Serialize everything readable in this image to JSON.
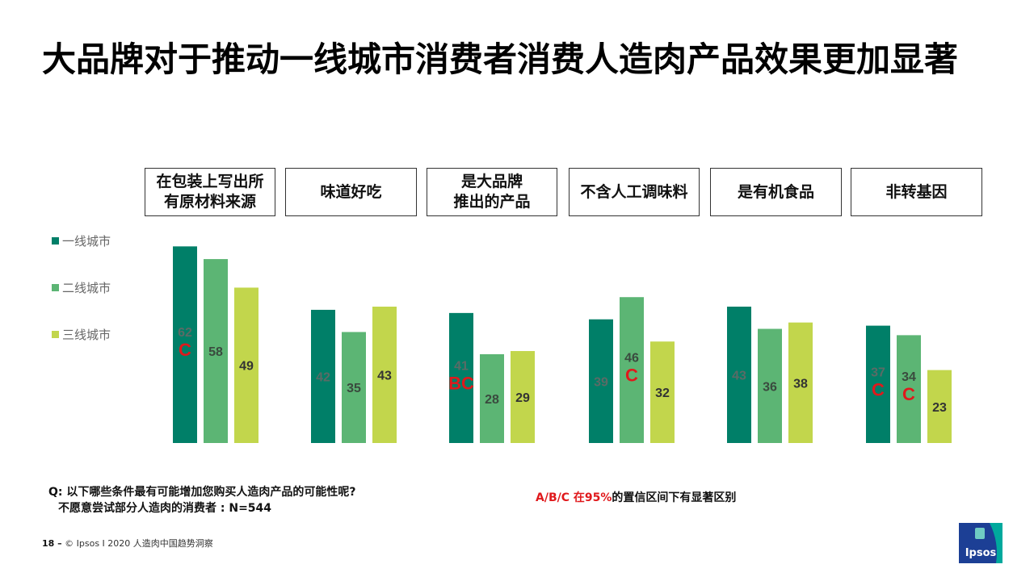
{
  "title": "大品牌对于推动一线城市消费者消费人造肉产品效果更加显著",
  "categories": [
    "在包装上写出所\n有原材料来源",
    "味道好吃",
    "是大品牌\n推出的产品",
    "不含人工调味料",
    "是有机食品",
    "非转基因"
  ],
  "legend": [
    "一线城市",
    "二线城市",
    "三线城市"
  ],
  "colors": {
    "tier1": "#007f68",
    "tier2": "#5cb574",
    "tier3": "#c2d64c",
    "sig": "#e0191c"
  },
  "chart_data": {
    "type": "bar",
    "categories": [
      "在包装上写出所有原材料来源",
      "味道好吃",
      "是大品牌推出的产品",
      "不含人工调味料",
      "是有机食品",
      "非转基因"
    ],
    "series": [
      {
        "name": "一线城市",
        "values": [
          62,
          42,
          41,
          39,
          43,
          37
        ]
      },
      {
        "name": "二线城市",
        "values": [
          58,
          35,
          28,
          46,
          36,
          34
        ]
      },
      {
        "name": "三线城市",
        "values": [
          49,
          43,
          29,
          32,
          38,
          23
        ]
      }
    ],
    "significance": [
      [
        "C",
        "",
        ""
      ],
      [
        "",
        "",
        ""
      ],
      [
        "BC",
        "",
        ""
      ],
      [
        "",
        "C",
        ""
      ],
      [
        "",
        "",
        ""
      ],
      [
        "C",
        "C",
        ""
      ]
    ],
    "legend_position": "left"
  },
  "question": {
    "line1": "Q: 以下哪些条件最有可能增加您购买人造肉产品的可能性呢?",
    "line2": "不愿意尝试部分人造肉的消费者 : N=544"
  },
  "sig_note": {
    "red": "A/B/C  在95%",
    "rest": "的置信区间下有显著区别"
  },
  "footer": {
    "page": "18 –",
    "text": " © Ipsos I 2020 人造肉中国趋势洞察"
  },
  "logo": {
    "text": "Ipsos"
  }
}
